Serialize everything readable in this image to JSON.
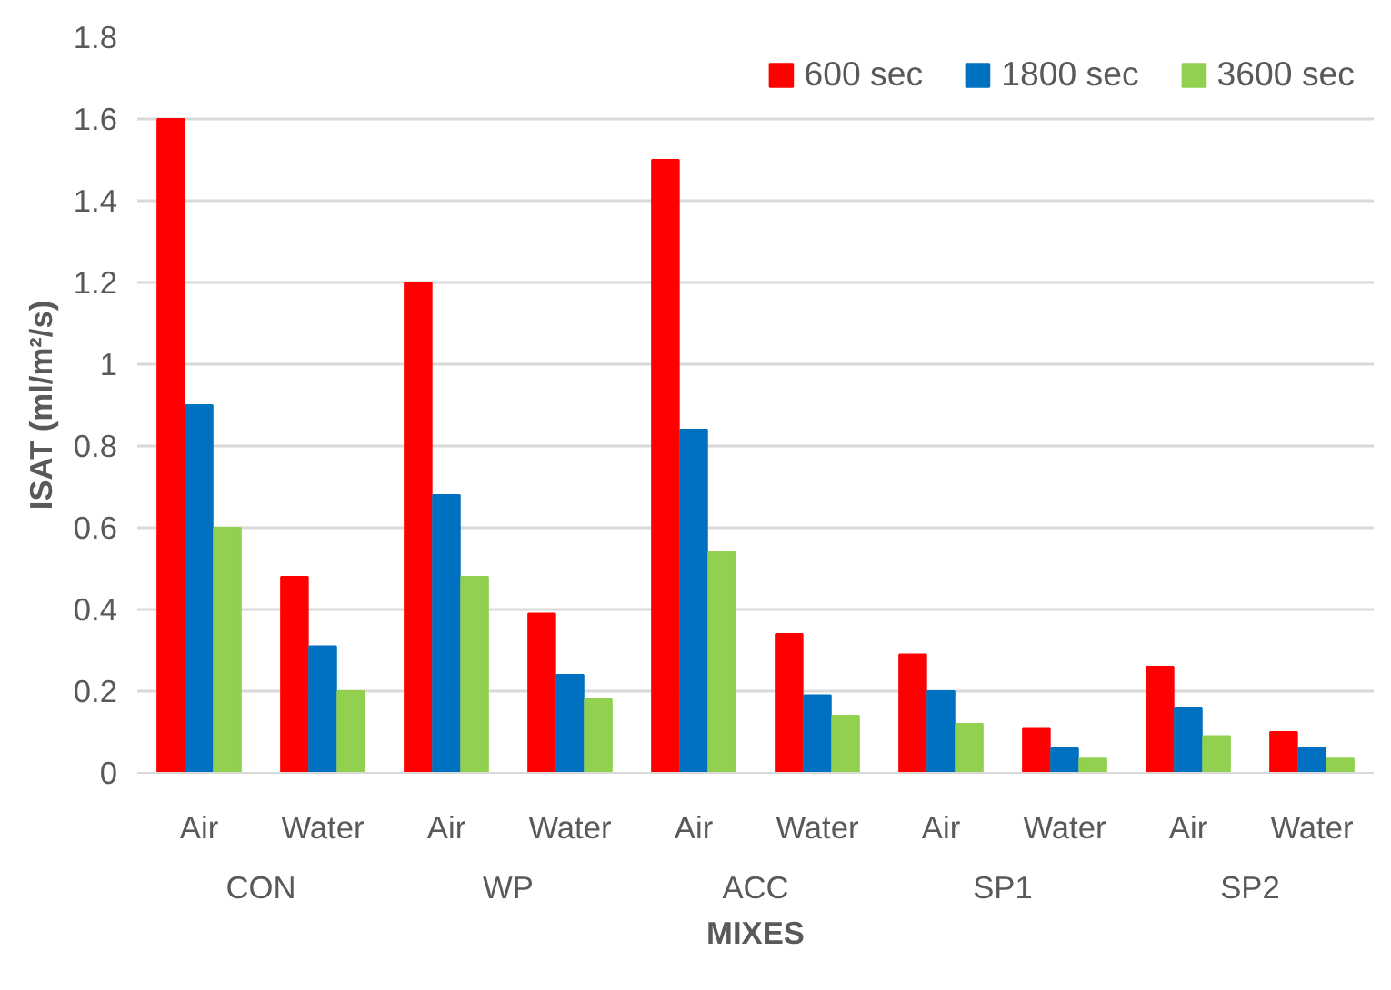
{
  "chart_data": {
    "type": "bar",
    "xlabel": "MIXES",
    "ylabel": "ISAT (ml/m²/s)",
    "categories": [
      "Air",
      "Water",
      "Air",
      "Water",
      "Air",
      "Water",
      "Air",
      "Water",
      "Air",
      "Water"
    ],
    "annotations": [
      "CON",
      "WP",
      "ACC",
      "SP1",
      "SP2"
    ],
    "series": [
      {
        "name": "600 sec",
        "color": "#ff0000",
        "values": [
          1.6,
          0.48,
          1.2,
          0.39,
          1.5,
          0.34,
          0.29,
          0.11,
          0.26,
          0.1
        ]
      },
      {
        "name": "1800 sec",
        "color": "#0070c0",
        "values": [
          0.9,
          0.31,
          0.68,
          0.24,
          0.84,
          0.19,
          0.2,
          0.06,
          0.16,
          0.06
        ]
      },
      {
        "name": "3600 sec",
        "color": "#92d050",
        "values": [
          0.6,
          0.2,
          0.48,
          0.18,
          0.54,
          0.14,
          0.12,
          0.035,
          0.09,
          0.035
        ]
      }
    ],
    "ylim": [
      0,
      1.8
    ],
    "yticks": [
      0,
      0.2,
      0.4,
      0.6,
      0.8,
      1,
      1.2,
      1.4,
      1.6,
      1.8
    ],
    "grid": "y",
    "legend": "top right"
  }
}
